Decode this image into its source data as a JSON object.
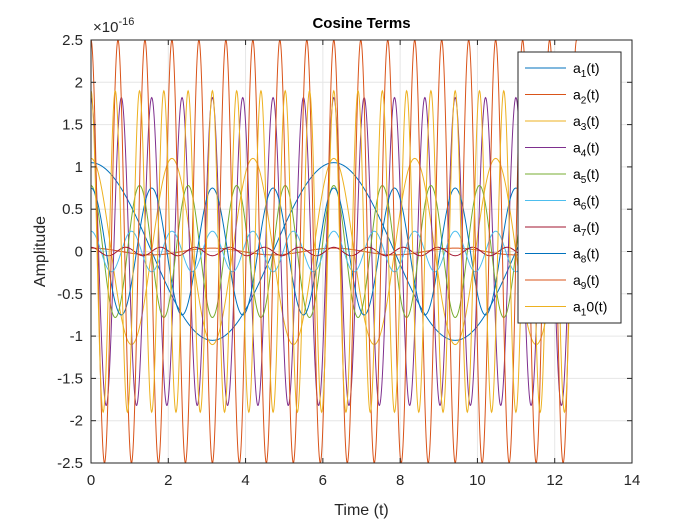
{
  "chart_data": {
    "type": "line",
    "title": "Cosine Terms",
    "xlabel": "Time (t)",
    "ylabel": "Amplitude",
    "exponent_label": "×10",
    "exponent_power": "-16",
    "xlim": [
      0,
      14
    ],
    "ylim": [
      -2.5,
      2.5
    ],
    "y_scale_factor": 1e-16,
    "x_ticks": [
      "0",
      "2",
      "4",
      "6",
      "8",
      "10",
      "12",
      "14"
    ],
    "y_ticks": [
      "-2.5",
      "-2",
      "-1.5",
      "-1",
      "-0.5",
      "0",
      "0.5",
      "1",
      "1.5",
      "2",
      "2.5"
    ],
    "grid": true,
    "legend_position": "top-right",
    "x_range": [
      0,
      12.566
    ],
    "series": [
      {
        "name": "a1(t)",
        "sub": "1",
        "suffix": "(t)",
        "amplitude": 1.05,
        "frequency": 1,
        "phase": 0,
        "color": "#0072BD"
      },
      {
        "name": "a2(t)",
        "sub": "2",
        "suffix": "(t)",
        "amplitude": 0.04,
        "frequency": 2,
        "phase": 0,
        "color": "#D95319"
      },
      {
        "name": "a3(t)",
        "sub": "3",
        "suffix": "(t)",
        "amplitude": 1.1,
        "frequency": 3,
        "phase": 0,
        "color": "#EDB120"
      },
      {
        "name": "a4(t)",
        "sub": "4",
        "suffix": "(t)",
        "amplitude": 1.82,
        "frequency": 8,
        "phase": 0,
        "color": "#7E2F8E"
      },
      {
        "name": "a5(t)",
        "sub": "5",
        "suffix": "(t)",
        "amplitude": 0.78,
        "frequency": 5,
        "phase": 0,
        "color": "#77AC30"
      },
      {
        "name": "a6(t)",
        "sub": "6",
        "suffix": "(t)",
        "amplitude": 0.24,
        "frequency": 6,
        "phase": 0,
        "color": "#4DBEEE"
      },
      {
        "name": "a7(t)",
        "sub": "7",
        "suffix": "(t)",
        "amplitude": 0.05,
        "frequency": 7,
        "phase": 0,
        "color": "#A2142F"
      },
      {
        "name": "a8(t)",
        "sub": "8",
        "suffix": "(t)",
        "amplitude": 0.75,
        "frequency": 4,
        "phase": 0,
        "color": "#0072BD"
      },
      {
        "name": "a9(t)",
        "sub": "9",
        "suffix": "(t)",
        "amplitude": 2.5,
        "frequency": 9,
        "phase": 0,
        "color": "#D95319"
      },
      {
        "name": "a10(t)",
        "sub": "1",
        "suffix": "0(t)",
        "amplitude": 1.9,
        "frequency": 10,
        "phase": 0,
        "color": "#EDB120"
      }
    ]
  }
}
